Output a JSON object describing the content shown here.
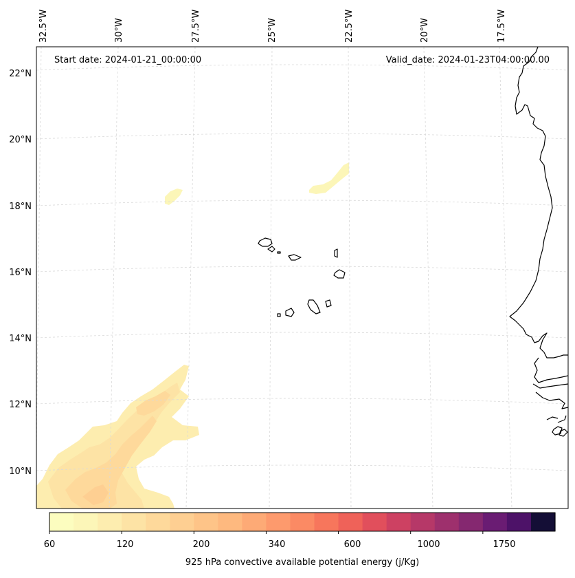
{
  "map": {
    "start_date": "Start date: 2024-01-21_00:00:00",
    "valid_date": "Valid_date: 2024-01-23T04:00:00.00",
    "lon_labels": [
      "32.5°W",
      "30°W",
      "27.5°W",
      "25°W",
      "22.5°W",
      "20°W",
      "17.5°W"
    ],
    "lat_labels": [
      "22°N",
      "20°N",
      "18°N",
      "16°N",
      "14°N",
      "12°N",
      "10°N"
    ]
  },
  "colorbar": {
    "tick_labels": [
      "60",
      "120",
      "200",
      "340",
      "600",
      "1000",
      "1750"
    ],
    "label": "925 hPa convective available potential energy (j/Kg)",
    "colors": [
      "#fcfdbf",
      "#fcf6b8",
      "#fdedaf",
      "#fde3a5",
      "#fed99b",
      "#fecf92",
      "#fec488",
      "#feb97f",
      "#fdaa76",
      "#fd9a6d",
      "#fb8a64",
      "#f7765c",
      "#ef6259",
      "#e14f5c",
      "#cd4162",
      "#b63868",
      "#9e306d",
      "#852870",
      "#6a1c73",
      "#4d1268",
      "#140e36"
    ]
  }
}
